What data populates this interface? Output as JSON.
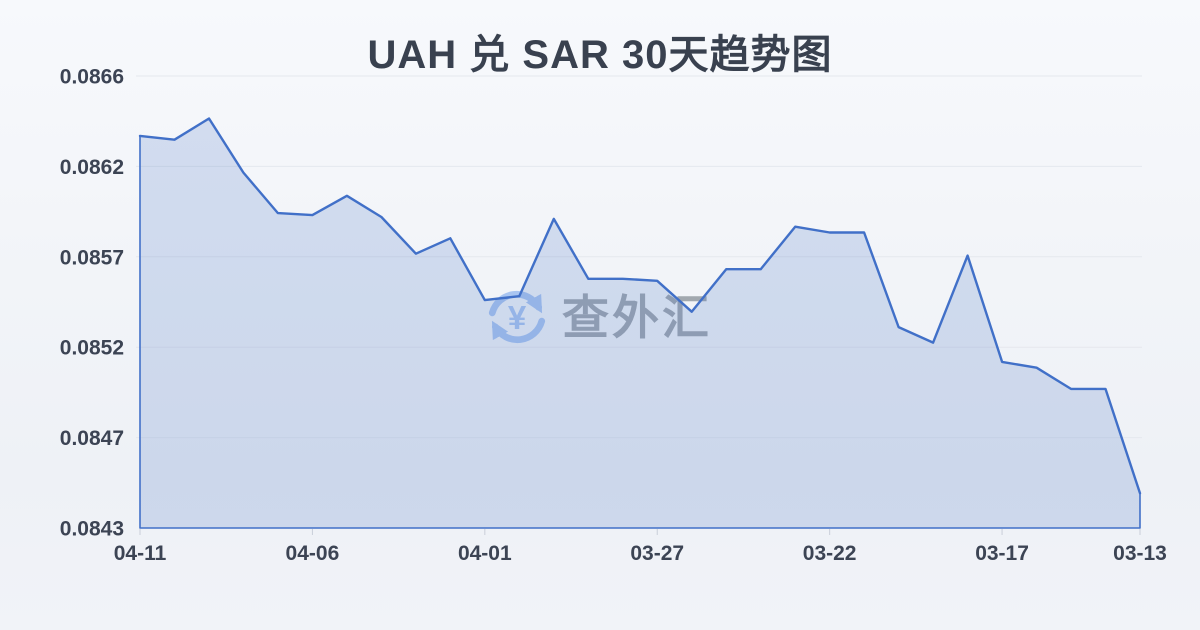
{
  "page": {
    "title": "UAH 兑 SAR 30天趋势图"
  },
  "watermark": {
    "text": "查外汇",
    "icon": "currency-exchange-icon"
  },
  "chart_data": {
    "type": "area",
    "title": "UAH 兑 SAR 30天趋势图",
    "x_order": "newest-date-on-left",
    "x": [
      "04-11",
      "04-10",
      "04-09",
      "04-08",
      "04-07",
      "04-06",
      "04-05",
      "04-04",
      "04-03",
      "04-02",
      "04-01",
      "03-31",
      "03-30",
      "03-29",
      "03-28",
      "03-27",
      "03-26",
      "03-25",
      "03-24",
      "03-23",
      "03-22",
      "03-21",
      "03-20",
      "03-19",
      "03-18",
      "03-17",
      "03-16",
      "03-15",
      "03-14",
      "03-13"
    ],
    "values": [
      0.08631,
      0.08629,
      0.0864,
      0.08612,
      0.08591,
      0.0859,
      0.086,
      0.08589,
      0.0857,
      0.08578,
      0.08546,
      0.08548,
      0.08588,
      0.08557,
      0.08557,
      0.08556,
      0.0854,
      0.08562,
      0.08562,
      0.08584,
      0.08581,
      0.08581,
      0.08532,
      0.08524,
      0.08569,
      0.08514,
      0.08511,
      0.085,
      0.085,
      0.08446
    ],
    "y_ticks": [
      "0.0866",
      "0.0862",
      "0.0857",
      "0.0852",
      "0.0847",
      "0.0843"
    ],
    "x_tick_indices": [
      0,
      5,
      10,
      15,
      20,
      25,
      29
    ],
    "ylim": [
      0.08428,
      0.08662
    ],
    "grid": true,
    "legend": false,
    "colors": {
      "line": "#4170c8",
      "fill": "rgba(68,114,196,0.20)",
      "grid": "#e5e8ee",
      "tick": "#c9cfd9",
      "axis_label": "#3c4454",
      "title": "#39414f",
      "watermark_icon": "#a9c5f1",
      "watermark_text": "rgba(109,116,127,0.60)"
    }
  }
}
